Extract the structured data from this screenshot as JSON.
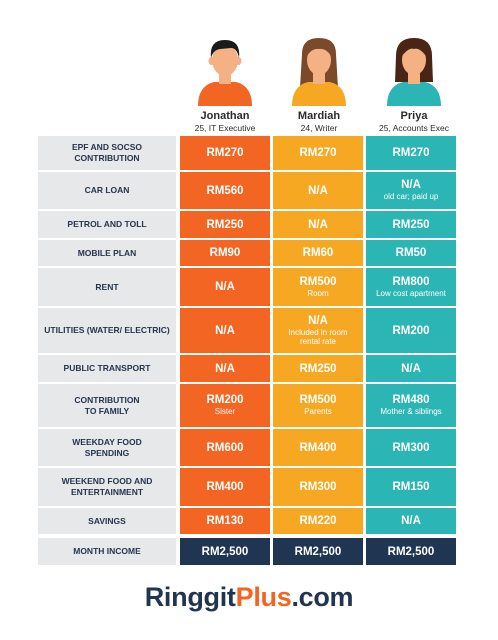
{
  "people": [
    {
      "name": "Jonathan",
      "sub": "25, IT Executive",
      "icon": "man-avatar-icon"
    },
    {
      "name": "Mardiah",
      "sub": "24, Writer",
      "icon": "woman-avatar-icon"
    },
    {
      "name": "Priya",
      "sub": "25, Accounts Exec",
      "icon": "woman-avatar-icon"
    }
  ],
  "rows": [
    {
      "label": "EPF AND SOCSO CONTRIBUTION",
      "j": "RM270",
      "m": "RM270",
      "p": "RM270"
    },
    {
      "label": "CAR LOAN",
      "j": "RM560",
      "m": "N/A",
      "p": "N/A",
      "p_note": "old car; paid up"
    },
    {
      "label": "PETROL AND TOLL",
      "j": "RM250",
      "m": "N/A",
      "p": "RM250"
    },
    {
      "label": "MOBILE PLAN",
      "j": "RM90",
      "m": "RM60",
      "p": "RM50"
    },
    {
      "label": "RENT",
      "j": "N/A",
      "m": "RM500",
      "m_note": "Room",
      "p": "RM800",
      "p_note": "Low cost apartment"
    },
    {
      "label": "UTILITIES (WATER/ ELECTRIC)",
      "j": "N/A",
      "m": "N/A",
      "m_note": "Included in room rental rate",
      "p": "RM200"
    },
    {
      "label": "PUBLIC TRANSPORT",
      "j": "N/A",
      "m": "RM250",
      "p": "N/A"
    },
    {
      "label": "CONTRIBUTION TO FAMILY",
      "j": "RM200",
      "j_note": "Sister",
      "m": "RM500",
      "m_note": "Parents",
      "p": "RM480",
      "p_note": "Mother & siblings"
    },
    {
      "label": "WEEKDAY FOOD SPENDING",
      "j": "RM600",
      "m": "RM400",
      "p": "RM300"
    },
    {
      "label": "WEEKEND FOOD AND ENTERTAINMENT",
      "j": "RM400",
      "m": "RM300",
      "p": "RM150"
    },
    {
      "label": "SAVINGS",
      "j": "RM130",
      "m": "RM220",
      "p": "N/A"
    }
  ],
  "income": {
    "label": "MONTH INCOME",
    "j": "RM2,500",
    "m": "RM2,500",
    "p": "RM2,500"
  },
  "logo": {
    "part1": "Ringgit",
    "part2": "Plus",
    "part3": ".com"
  },
  "colors": {
    "jonathan": "#f26522",
    "mardiah": "#f7a823",
    "priya": "#2bb5b4",
    "income": "#1f3551"
  }
}
